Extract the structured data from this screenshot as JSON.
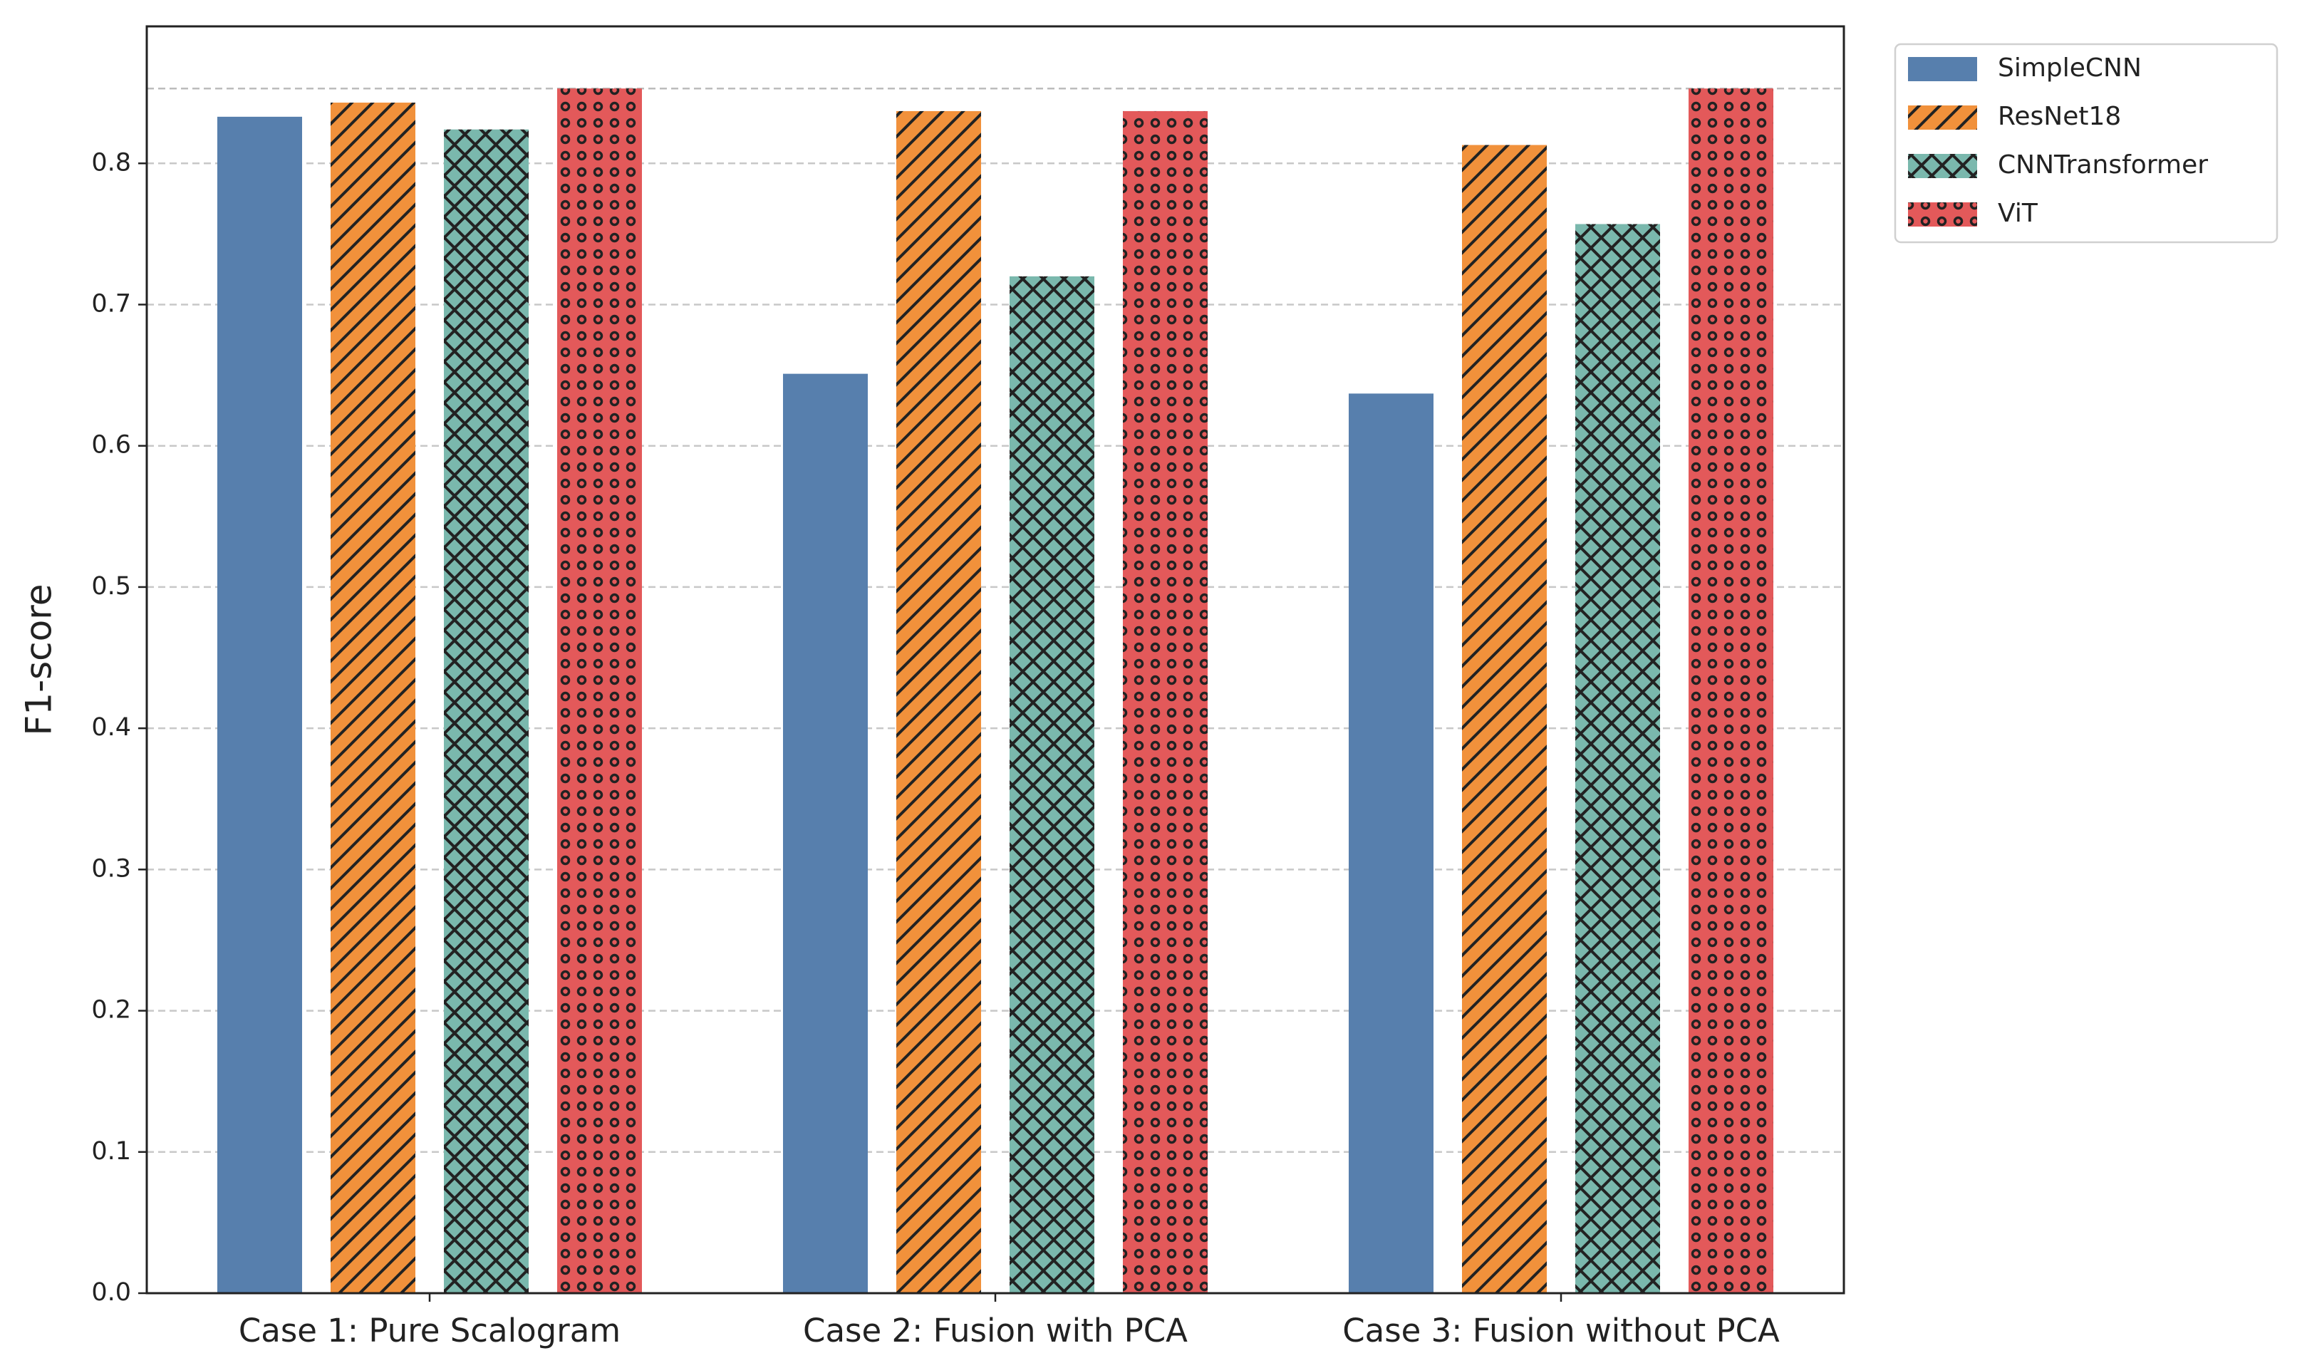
{
  "chart_data": {
    "type": "bar",
    "y_label": "F1-score",
    "categories": [
      "Case 1: Pure Scalogram",
      "Case 2: Fusion with PCA",
      "Case 3: Fusion without PCA"
    ],
    "series": [
      {
        "name": "SimpleCNN",
        "color": "#577fad",
        "values": [
          0.833,
          0.651,
          0.637
        ]
      },
      {
        "name": "ResNet18",
        "color": "#f1913b",
        "hatch": "/",
        "values": [
          0.843,
          0.837,
          0.813
        ]
      },
      {
        "name": "CNNTransformer",
        "color": "#7ab8ad",
        "hatch": "x",
        "values": [
          0.824,
          0.72,
          0.757
        ]
      },
      {
        "name": "ViT",
        "color": "#e3595a",
        "hatch": "o",
        "values": [
          0.853,
          0.837,
          0.853
        ]
      }
    ],
    "reference_line": 0.853,
    "ylim": [
      0,
      0.897
    ],
    "yticks": [
      {
        "value": 0,
        "label": "0.0"
      },
      0.1,
      0.2,
      0.3,
      0.4,
      0.5,
      0.6,
      0.7,
      0.8
    ],
    "grid": true,
    "legend": "outside-upper-right"
  }
}
